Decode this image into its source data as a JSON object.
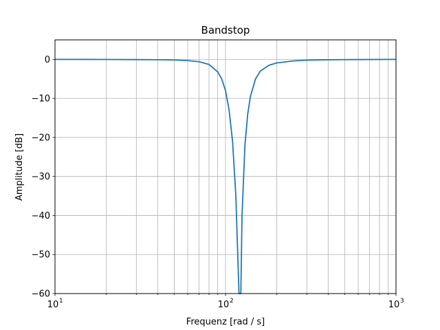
{
  "chart_data": {
    "type": "line",
    "title": "Bandstop",
    "xlabel": "Frequenz [rad / s]",
    "ylabel": "Amplitude [dB]",
    "xscale": "log",
    "xlim": [
      10,
      1000
    ],
    "ylim": [
      -60,
      5
    ],
    "grid": "both (major and minor on x)",
    "x_ticks": [
      {
        "base": "10",
        "exp": "1",
        "value": 10
      },
      {
        "base": "10",
        "exp": "2",
        "value": 100
      },
      {
        "base": "10",
        "exp": "3",
        "value": 1000
      }
    ],
    "y_ticks": [
      {
        "label": "0",
        "value": 0
      },
      {
        "label": "−10",
        "value": -10
      },
      {
        "label": "−20",
        "value": -20
      },
      {
        "label": "−30",
        "value": -30
      },
      {
        "label": "−40",
        "value": -40
      },
      {
        "label": "−50",
        "value": -50
      },
      {
        "label": "−60",
        "value": -60
      }
    ],
    "line_color": "#1f77b4",
    "series": [
      {
        "points": [
          [
            10,
            0.0
          ],
          [
            20,
            -0.02
          ],
          [
            30,
            -0.05
          ],
          [
            40,
            -0.08
          ],
          [
            50,
            -0.15
          ],
          [
            60,
            -0.3
          ],
          [
            70,
            -0.6
          ],
          [
            80,
            -1.3
          ],
          [
            90,
            -3.2
          ],
          [
            95,
            -5.0
          ],
          [
            100,
            -8.0
          ],
          [
            105,
            -13.0
          ],
          [
            110,
            -21.0
          ],
          [
            115,
            -35.0
          ],
          [
            120,
            -60.0
          ],
          [
            123,
            -60.0
          ],
          [
            125,
            -40.0
          ],
          [
            130,
            -22.0
          ],
          [
            135,
            -14.0
          ],
          [
            140,
            -9.5
          ],
          [
            150,
            -5.0
          ],
          [
            160,
            -3.0
          ],
          [
            180,
            -1.5
          ],
          [
            200,
            -0.9
          ],
          [
            250,
            -0.4
          ],
          [
            300,
            -0.2
          ],
          [
            400,
            -0.1
          ],
          [
            500,
            -0.06
          ],
          [
            700,
            -0.03
          ],
          [
            1000,
            0.0
          ]
        ]
      }
    ]
  }
}
